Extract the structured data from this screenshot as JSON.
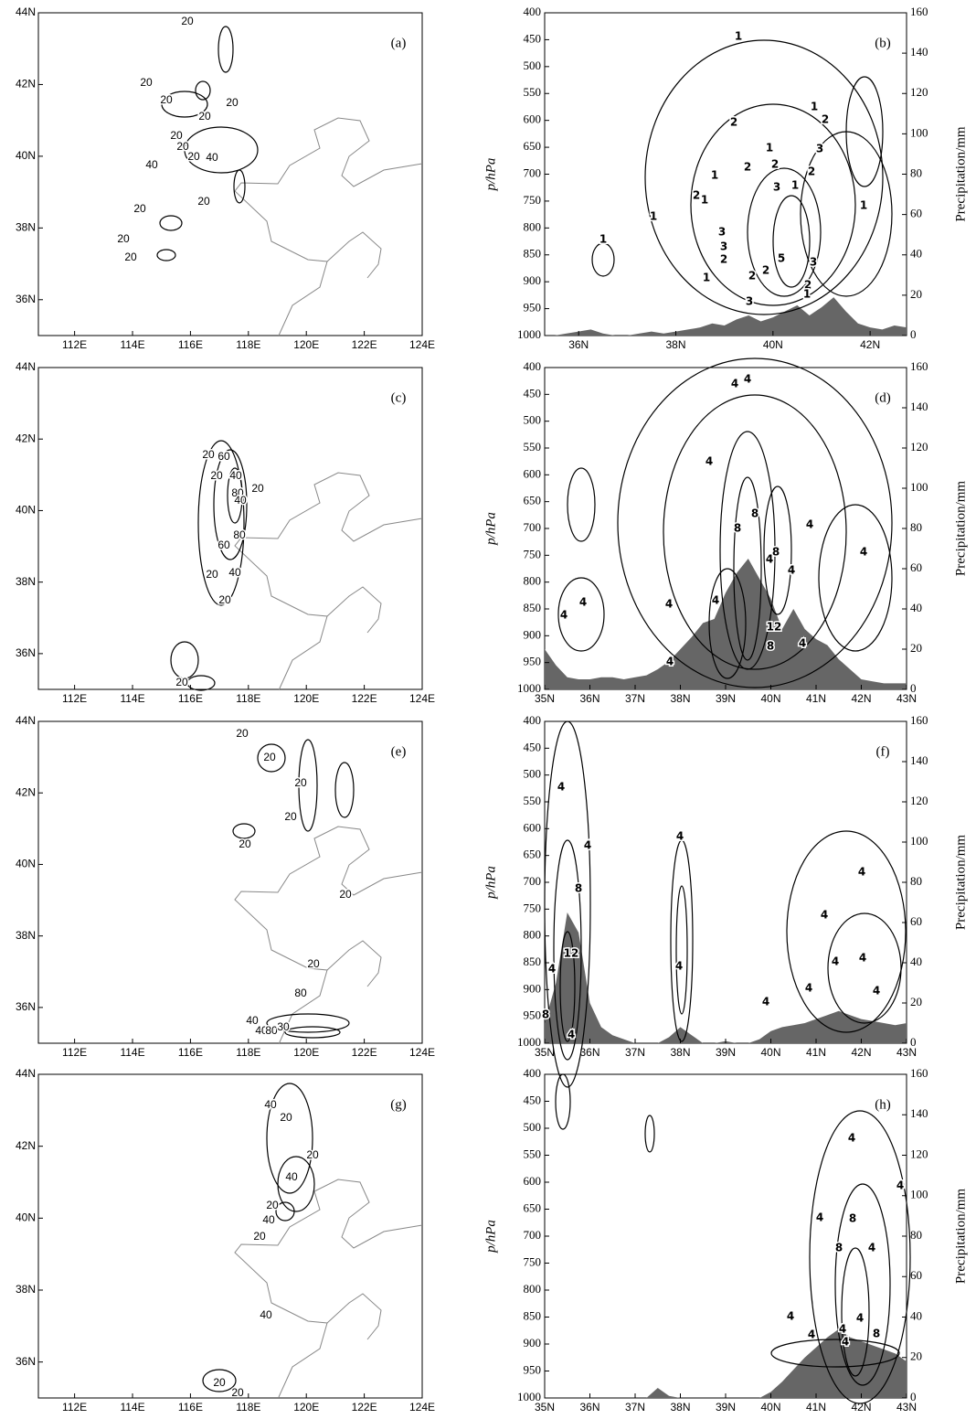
{
  "chart_data": [
    {
      "type": "map",
      "label": "(a)",
      "xlim": [
        110.75,
        124
      ],
      "ylim": [
        35,
        44
      ],
      "xticks": [
        {
          "value": 112,
          "label": "112E"
        },
        {
          "value": 114,
          "label": "114E"
        },
        {
          "value": 116,
          "label": "116E"
        },
        {
          "value": 118,
          "label": "118E"
        },
        {
          "value": 120,
          "label": "120E"
        },
        {
          "value": 122,
          "label": "122E"
        },
        {
          "value": 124,
          "label": "124E"
        }
      ],
      "yticks": [
        {
          "value": 36,
          "label": "36N"
        },
        {
          "value": 38,
          "label": "38N"
        },
        {
          "value": 40,
          "label": "40N"
        },
        {
          "value": 42,
          "label": "42N"
        },
        {
          "value": 44,
          "label": "44N"
        }
      ],
      "contour_labels": [
        20,
        20,
        20,
        20,
        20,
        20,
        20,
        40,
        20,
        40,
        20,
        20,
        20,
        20
      ]
    },
    {
      "type": "cross-section",
      "label": "(b)",
      "y_label": "p/hPa",
      "y2_label": "Precipitation/mm",
      "xlim": [
        35.3,
        42.75
      ],
      "xticks": [
        {
          "value": 36,
          "label": "36N"
        },
        {
          "value": 38,
          "label": "38N"
        },
        {
          "value": 40,
          "label": "40N"
        },
        {
          "value": 42,
          "label": "42N"
        }
      ],
      "ylim": [
        1000,
        400
      ],
      "yticks": [
        400,
        450,
        500,
        550,
        600,
        650,
        700,
        750,
        800,
        850,
        900,
        950,
        1000
      ],
      "y2lim": [
        0,
        160
      ],
      "y2ticks": [
        0,
        20,
        40,
        60,
        80,
        100,
        120,
        140,
        160
      ],
      "series": [
        {
          "color": "#666666",
          "axis": "y2",
          "x": [
            35.5,
            35.75,
            36,
            36.25,
            36.5,
            36.75,
            37,
            37.25,
            37.5,
            37.75,
            38,
            38.25,
            38.5,
            38.75,
            39,
            39.25,
            39.5,
            39.75,
            40,
            40.25,
            40.5,
            40.75,
            41,
            41.25,
            41.5,
            41.75,
            42,
            42.25,
            42.5,
            42.75
          ],
          "values": [
            0,
            1,
            2,
            3,
            1,
            0,
            0,
            1,
            2,
            1,
            2,
            3,
            4,
            6,
            5,
            8,
            10,
            7,
            9,
            12,
            15,
            10,
            14,
            19,
            12,
            6,
            4,
            3,
            5,
            4
          ]
        }
      ],
      "contour_labels": [
        1,
        1,
        2,
        2,
        1,
        3,
        1,
        2,
        2,
        2,
        1,
        3,
        2,
        1,
        1,
        1,
        1,
        3,
        3,
        2,
        5,
        2,
        3,
        1,
        2,
        2,
        1,
        3
      ]
    },
    {
      "type": "map",
      "label": "(c)",
      "xlim": [
        110.75,
        124
      ],
      "ylim": [
        35,
        44
      ],
      "xticks": [
        {
          "value": 112,
          "label": "112E"
        },
        {
          "value": 114,
          "label": "114E"
        },
        {
          "value": 116,
          "label": "116E"
        },
        {
          "value": 118,
          "label": "118E"
        },
        {
          "value": 120,
          "label": "120E"
        },
        {
          "value": 122,
          "label": "122E"
        },
        {
          "value": 124,
          "label": "124E"
        }
      ],
      "yticks": [
        {
          "value": 36,
          "label": "36N"
        },
        {
          "value": 38,
          "label": "38N"
        },
        {
          "value": 40,
          "label": "40N"
        },
        {
          "value": 42,
          "label": "42N"
        },
        {
          "value": 44,
          "label": "44N"
        }
      ],
      "contour_labels": [
        20,
        60,
        40,
        20,
        80,
        40,
        20,
        80,
        60,
        20,
        40,
        20,
        20
      ]
    },
    {
      "type": "cross-section",
      "label": "(d)",
      "y_label": "p/hPa",
      "y2_label": "Precipitation/mm",
      "xlim": [
        35,
        43
      ],
      "xticks": [
        {
          "value": 35,
          "label": "35N"
        },
        {
          "value": 36,
          "label": "36N"
        },
        {
          "value": 37,
          "label": "37N"
        },
        {
          "value": 38,
          "label": "38N"
        },
        {
          "value": 39,
          "label": "39N"
        },
        {
          "value": 40,
          "label": "40N"
        },
        {
          "value": 41,
          "label": "41N"
        },
        {
          "value": 42,
          "label": "42N"
        },
        {
          "value": 43,
          "label": "43N"
        }
      ],
      "ylim": [
        1000,
        400
      ],
      "yticks": [
        400,
        450,
        500,
        550,
        600,
        650,
        700,
        750,
        800,
        850,
        900,
        950,
        1000
      ],
      "y2lim": [
        0,
        160
      ],
      "y2ticks": [
        0,
        20,
        40,
        60,
        80,
        100,
        120,
        140,
        160
      ],
      "series": [
        {
          "color": "#666666",
          "axis": "y2",
          "x": [
            35,
            35.25,
            35.5,
            35.75,
            36,
            36.25,
            36.5,
            36.75,
            37,
            37.25,
            37.5,
            37.75,
            38,
            38.25,
            38.5,
            38.75,
            39,
            39.25,
            39.5,
            39.75,
            40,
            40.25,
            40.5,
            40.75,
            41,
            41.25,
            41.5,
            41.75,
            42,
            42.25,
            42.5,
            42.75,
            43
          ],
          "values": [
            20,
            12,
            6,
            5,
            5,
            6,
            6,
            5,
            6,
            7,
            10,
            14,
            20,
            26,
            33,
            35,
            48,
            58,
            65,
            55,
            45,
            30,
            40,
            30,
            25,
            22,
            15,
            10,
            5,
            4,
            3,
            3,
            3
          ]
        }
      ],
      "contour_labels": [
        4,
        4,
        4,
        8,
        8,
        4,
        4,
        8,
        4,
        4,
        4,
        4,
        4,
        4,
        12,
        4,
        8,
        4
      ]
    },
    {
      "type": "map",
      "label": "(e)",
      "xlim": [
        110.75,
        124
      ],
      "ylim": [
        35,
        44
      ],
      "xticks": [
        {
          "value": 112,
          "label": "112E"
        },
        {
          "value": 114,
          "label": "114E"
        },
        {
          "value": 116,
          "label": "116E"
        },
        {
          "value": 118,
          "label": "118E"
        },
        {
          "value": 120,
          "label": "120E"
        },
        {
          "value": 122,
          "label": "122E"
        },
        {
          "value": 124,
          "label": "124E"
        }
      ],
      "yticks": [
        {
          "value": 36,
          "label": "36N"
        },
        {
          "value": 38,
          "label": "38N"
        },
        {
          "value": 40,
          "label": "40N"
        },
        {
          "value": 42,
          "label": "42N"
        },
        {
          "value": 44,
          "label": "44N"
        }
      ],
      "contour_labels": [
        20,
        20,
        20,
        20,
        20,
        20,
        20,
        80,
        40,
        40,
        80,
        30
      ]
    },
    {
      "type": "cross-section",
      "label": "(f)",
      "y_label": "p/hPa",
      "y2_label": "Precipitation/mm",
      "xlim": [
        35,
        43
      ],
      "xticks": [
        {
          "value": 35,
          "label": "35N"
        },
        {
          "value": 36,
          "label": "36N"
        },
        {
          "value": 37,
          "label": "37N"
        },
        {
          "value": 38,
          "label": "38N"
        },
        {
          "value": 39,
          "label": "39N"
        },
        {
          "value": 40,
          "label": "40N"
        },
        {
          "value": 41,
          "label": "41N"
        },
        {
          "value": 42,
          "label": "42N"
        },
        {
          "value": 43,
          "label": "43N"
        }
      ],
      "ylim": [
        1000,
        400
      ],
      "yticks": [
        400,
        450,
        500,
        550,
        600,
        650,
        700,
        750,
        800,
        850,
        900,
        950,
        1000
      ],
      "y2lim": [
        0,
        160
      ],
      "y2ticks": [
        0,
        20,
        40,
        60,
        80,
        100,
        120,
        140,
        160
      ],
      "series": [
        {
          "color": "#666666",
          "axis": "y2",
          "x": [
            35,
            35.25,
            35.5,
            35.75,
            36,
            36.25,
            36.5,
            36.75,
            37,
            37.25,
            37.5,
            37.75,
            38,
            38.25,
            38.5,
            38.75,
            39,
            39.25,
            39.5,
            39.75,
            40,
            40.25,
            40.5,
            40.75,
            41,
            41.25,
            41.5,
            41.75,
            42,
            42.25,
            42.5,
            42.75,
            43
          ],
          "values": [
            10,
            30,
            65,
            55,
            20,
            8,
            4,
            2,
            0,
            0,
            0,
            3,
            8,
            4,
            0,
            0,
            1,
            0,
            0,
            2,
            6,
            8,
            9,
            10,
            12,
            14,
            16,
            14,
            12,
            11,
            10,
            9,
            10
          ]
        }
      ],
      "contour_labels": [
        4,
        4,
        4,
        8,
        12,
        4,
        4,
        4,
        4,
        4,
        4,
        4,
        4,
        4,
        8,
        4
      ]
    },
    {
      "type": "map",
      "label": "(g)",
      "xlim": [
        110.75,
        124
      ],
      "ylim": [
        35,
        44
      ],
      "xticks": [
        {
          "value": 112,
          "label": "112E"
        },
        {
          "value": 114,
          "label": "114E"
        },
        {
          "value": 116,
          "label": "116E"
        },
        {
          "value": 118,
          "label": "118E"
        },
        {
          "value": 120,
          "label": "120E"
        },
        {
          "value": 122,
          "label": "122E"
        },
        {
          "value": 124,
          "label": "124E"
        }
      ],
      "yticks": [
        {
          "value": 36,
          "label": "36N"
        },
        {
          "value": 38,
          "label": "38N"
        },
        {
          "value": 40,
          "label": "40N"
        },
        {
          "value": 42,
          "label": "42N"
        },
        {
          "value": 44,
          "label": "44N"
        }
      ],
      "contour_labels": [
        40,
        20,
        20,
        40,
        20,
        40,
        20,
        40,
        20,
        20
      ]
    },
    {
      "type": "cross-section",
      "label": "(h)",
      "y_label": "p/hPa",
      "y2_label": "Precipitation/mm",
      "xlim": [
        35,
        43
      ],
      "xticks": [
        {
          "value": 35,
          "label": "35N"
        },
        {
          "value": 36,
          "label": "36N"
        },
        {
          "value": 37,
          "label": "37N"
        },
        {
          "value": 38,
          "label": "38N"
        },
        {
          "value": 39,
          "label": "39N"
        },
        {
          "value": 40,
          "label": "40N"
        },
        {
          "value": 41,
          "label": "41N"
        },
        {
          "value": 42,
          "label": "42N"
        },
        {
          "value": 43,
          "label": "43N"
        }
      ],
      "ylim": [
        1000,
        400
      ],
      "yticks": [
        400,
        450,
        500,
        550,
        600,
        650,
        700,
        750,
        800,
        850,
        900,
        950,
        1000
      ],
      "y2lim": [
        0,
        160
      ],
      "y2ticks": [
        0,
        20,
        40,
        60,
        80,
        100,
        120,
        140,
        160
      ],
      "series": [
        {
          "color": "#666666",
          "axis": "y2",
          "x": [
            35,
            35.25,
            35.5,
            35.75,
            36,
            36.25,
            36.5,
            36.75,
            37,
            37.25,
            37.5,
            37.75,
            38,
            38.25,
            38.5,
            38.75,
            39,
            39.25,
            39.5,
            39.75,
            40,
            40.25,
            40.5,
            40.75,
            41,
            41.25,
            41.5,
            41.75,
            42,
            42.25,
            42.5,
            42.75,
            43
          ],
          "values": [
            0,
            0,
            0,
            0,
            0,
            0,
            0,
            0,
            0,
            0,
            5,
            1,
            0,
            0,
            0,
            0,
            0,
            0,
            0,
            0,
            3,
            8,
            14,
            20,
            25,
            30,
            34,
            30,
            28,
            26,
            24,
            22,
            18
          ]
        }
      ],
      "contour_labels": [
        4,
        4,
        4,
        8,
        8,
        4,
        4,
        4,
        4,
        4,
        8,
        4
      ]
    }
  ]
}
